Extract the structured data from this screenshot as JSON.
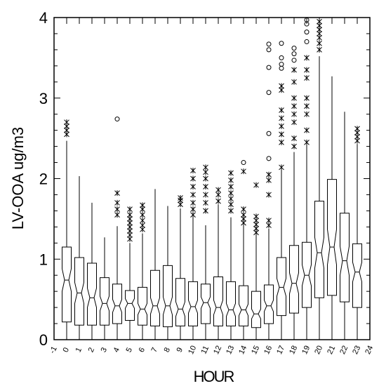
{
  "chart_data": {
    "type": "box",
    "title": "",
    "xlabel": "HOUR",
    "ylabel": "LV-OOA ug/m3",
    "xlim": [
      -1,
      24
    ],
    "ylim": [
      0,
      4
    ],
    "x_ticks": [
      -1,
      0,
      1,
      2,
      3,
      4,
      5,
      6,
      7,
      8,
      9,
      10,
      11,
      12,
      13,
      14,
      15,
      16,
      17,
      18,
      19,
      20,
      21,
      22,
      23,
      24
    ],
    "y_ticks": [
      0,
      1,
      2,
      3,
      4
    ],
    "notched": true,
    "outlier_markers": {
      "near": "asterisk",
      "far": "circle"
    },
    "boxes": [
      {
        "hour": 0,
        "min": 0.05,
        "q1": 0.22,
        "median": 0.74,
        "q3": 1.15,
        "max": 2.47,
        "notch": [
          0.6,
          0.88
        ],
        "outliers_near": [
          2.55,
          2.6,
          2.65,
          2.7
        ],
        "outliers_far": []
      },
      {
        "hour": 1,
        "min": 0.03,
        "q1": 0.18,
        "median": 0.58,
        "q3": 1.02,
        "max": 2.03,
        "notch": [
          0.45,
          0.71
        ],
        "outliers_near": [],
        "outliers_far": []
      },
      {
        "hour": 2,
        "min": 0.03,
        "q1": 0.18,
        "median": 0.52,
        "q3": 0.95,
        "max": 1.7,
        "notch": [
          0.4,
          0.64
        ],
        "outliers_near": [],
        "outliers_far": []
      },
      {
        "hour": 3,
        "min": 0.03,
        "q1": 0.18,
        "median": 0.45,
        "q3": 0.77,
        "max": 1.27,
        "notch": [
          0.36,
          0.54
        ],
        "outliers_near": [],
        "outliers_far": []
      },
      {
        "hour": 4,
        "min": 0.03,
        "q1": 0.2,
        "median": 0.42,
        "q3": 0.69,
        "max": 1.41,
        "notch": [
          0.34,
          0.5
        ],
        "outliers_near": [
          1.55,
          1.62,
          1.7,
          1.82
        ],
        "outliers_far": [
          2.74
        ]
      },
      {
        "hour": 5,
        "min": 0.05,
        "q1": 0.24,
        "median": 0.45,
        "q3": 0.61,
        "max": 1.2,
        "notch": [
          0.39,
          0.51
        ],
        "outliers_near": [
          1.25,
          1.3,
          1.35,
          1.4,
          1.45,
          1.5,
          1.55,
          1.62
        ],
        "outliers_far": []
      },
      {
        "hour": 6,
        "min": 0.03,
        "q1": 0.18,
        "median": 0.38,
        "q3": 0.65,
        "max": 1.32,
        "notch": [
          0.31,
          0.45
        ],
        "outliers_near": [
          1.37,
          1.42,
          1.48,
          1.55,
          1.62,
          1.67
        ],
        "outliers_far": []
      },
      {
        "hour": 7,
        "min": 0.03,
        "q1": 0.17,
        "median": 0.42,
        "q3": 0.86,
        "max": 1.87,
        "notch": [
          0.32,
          0.52
        ],
        "outliers_near": [],
        "outliers_far": []
      },
      {
        "hour": 8,
        "min": 0.03,
        "q1": 0.16,
        "median": 0.42,
        "q3": 0.92,
        "max": 1.66,
        "notch": [
          0.31,
          0.53
        ],
        "outliers_near": [],
        "outliers_far": []
      },
      {
        "hour": 9,
        "min": 0.03,
        "q1": 0.17,
        "median": 0.38,
        "q3": 0.76,
        "max": 1.63,
        "notch": [
          0.29,
          0.47
        ],
        "outliers_near": [
          1.68,
          1.73,
          1.76
        ],
        "outliers_far": []
      },
      {
        "hour": 10,
        "min": 0.03,
        "q1": 0.17,
        "median": 0.41,
        "q3": 0.72,
        "max": 1.52,
        "notch": [
          0.33,
          0.49
        ],
        "outliers_near": [
          1.55,
          1.62,
          1.7,
          1.8,
          1.9,
          2.0,
          2.1
        ],
        "outliers_far": []
      },
      {
        "hour": 11,
        "min": 0.03,
        "q1": 0.2,
        "median": 0.46,
        "q3": 0.69,
        "max": 1.42,
        "notch": [
          0.39,
          0.53
        ],
        "outliers_near": [
          1.6,
          1.7,
          1.8,
          1.9,
          2.0,
          2.08,
          2.14
        ],
        "outliers_far": []
      },
      {
        "hour": 12,
        "min": 0.03,
        "q1": 0.17,
        "median": 0.4,
        "q3": 0.78,
        "max": 1.68,
        "notch": [
          0.31,
          0.49
        ],
        "outliers_near": [
          1.72,
          1.8,
          1.86
        ],
        "outliers_far": []
      },
      {
        "hour": 13,
        "min": 0.03,
        "q1": 0.17,
        "median": 0.37,
        "q3": 0.72,
        "max": 1.52,
        "notch": [
          0.29,
          0.45
        ],
        "outliers_near": [
          1.6,
          1.68,
          1.75,
          1.82,
          1.9,
          1.98,
          2.07
        ],
        "outliers_far": []
      },
      {
        "hour": 14,
        "min": 0.03,
        "q1": 0.17,
        "median": 0.37,
        "q3": 0.67,
        "max": 1.42,
        "notch": [
          0.3,
          0.44
        ],
        "outliers_near": [
          1.45,
          1.5,
          1.55,
          1.62,
          2.09
        ],
        "outliers_far": [
          2.2
        ]
      },
      {
        "hour": 15,
        "min": 0.03,
        "q1": 0.15,
        "median": 0.32,
        "q3": 0.6,
        "max": 1.31,
        "notch": [
          0.26,
          0.38
        ],
        "outliers_near": [
          1.33,
          1.38,
          1.43,
          1.48,
          1.53,
          1.92
        ],
        "outliers_far": []
      },
      {
        "hour": 16,
        "min": 0.03,
        "q1": 0.2,
        "median": 0.42,
        "q3": 0.68,
        "max": 1.38,
        "notch": [
          0.35,
          0.49
        ],
        "outliers_near": [
          1.42,
          1.48,
          1.8,
          1.98,
          2.05
        ],
        "outliers_far": [
          2.25,
          2.56,
          3.07,
          3.38,
          3.6,
          3.67
        ]
      },
      {
        "hour": 17,
        "min": 0.05,
        "q1": 0.3,
        "median": 0.65,
        "q3": 1.02,
        "max": 2.13,
        "notch": [
          0.54,
          0.76
        ],
        "outliers_near": [
          2.14,
          2.45,
          2.55,
          2.65,
          2.75,
          2.85,
          3.1,
          3.15
        ],
        "outliers_far": [
          3.37,
          3.42,
          3.5,
          3.68
        ]
      },
      {
        "hour": 18,
        "min": 0.05,
        "q1": 0.33,
        "median": 0.7,
        "q3": 1.17,
        "max": 2.33,
        "notch": [
          0.57,
          0.83
        ],
        "outliers_near": [
          2.4,
          2.5,
          2.7,
          2.8,
          2.9,
          3.0,
          3.2,
          3.35
        ],
        "outliers_far": [
          3.47,
          3.55,
          3.62
        ]
      },
      {
        "hour": 19,
        "min": 0.05,
        "q1": 0.4,
        "median": 0.8,
        "q3": 1.21,
        "max": 2.43,
        "notch": [
          0.67,
          0.93
        ],
        "outliers_near": [
          2.45,
          2.6,
          2.8,
          2.9,
          3.0,
          3.25,
          3.35,
          3.5
        ],
        "outliers_far": [
          3.7,
          3.82,
          3.92,
          3.97
        ]
      },
      {
        "hour": 20,
        "min": 0.05,
        "q1": 0.52,
        "median": 1.08,
        "q3": 1.72,
        "max": 3.52,
        "notch": [
          0.89,
          1.27
        ],
        "outliers_near": [
          3.6,
          3.68,
          3.75,
          3.8,
          3.85,
          3.9,
          3.95
        ],
        "outliers_far": []
      },
      {
        "hour": 21,
        "min": 0.05,
        "q1": 0.55,
        "median": 1.15,
        "q3": 1.99,
        "max": 3.27,
        "notch": [
          0.93,
          1.37
        ],
        "outliers_near": [],
        "outliers_far": []
      },
      {
        "hour": 22,
        "min": 0.05,
        "q1": 0.47,
        "median": 0.98,
        "q3": 1.57,
        "max": 2.83,
        "notch": [
          0.8,
          1.16
        ],
        "outliers_near": [],
        "outliers_far": []
      },
      {
        "hour": 23,
        "min": 0.05,
        "q1": 0.4,
        "median": 0.84,
        "q3": 1.19,
        "max": 2.43,
        "notch": [
          0.72,
          0.96
        ],
        "outliers_near": [
          2.47,
          2.52,
          2.57,
          2.62
        ],
        "outliers_far": []
      }
    ]
  }
}
